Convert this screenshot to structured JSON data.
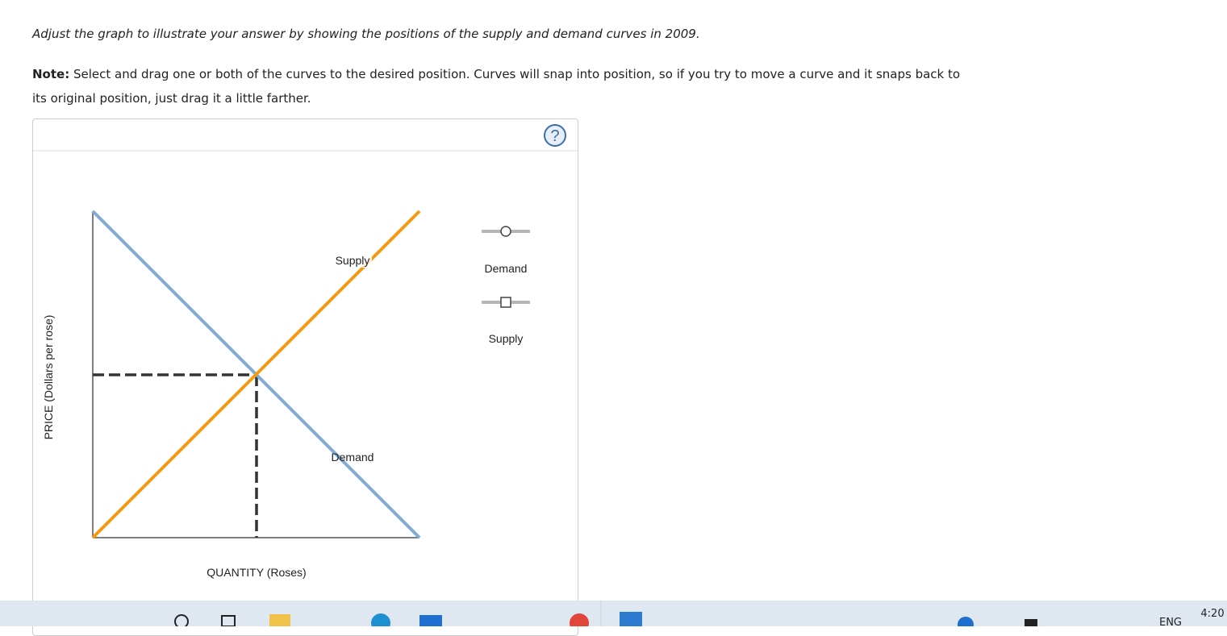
{
  "instructions": "Adjust the graph to illustrate your answer by showing the positions of the supply and demand curves in 2009.",
  "note": {
    "label": "Note:",
    "text": "Select and drag one or both of the curves to the desired position. Curves will snap into position, so if you try to move a curve and it snaps back to its original position, just drag it a little farther."
  },
  "graph": {
    "help": "?",
    "y_axis_label": "PRICE (Dollars per rose)",
    "x_axis_label": "QUANTITY (Roses)",
    "curves": [
      {
        "label": "Supply"
      },
      {
        "label": "Demand"
      }
    ],
    "palette": [
      {
        "label": "Demand"
      },
      {
        "label": "Supply"
      }
    ]
  },
  "taskbar": {
    "language": "ENG",
    "time": "4:20"
  }
}
